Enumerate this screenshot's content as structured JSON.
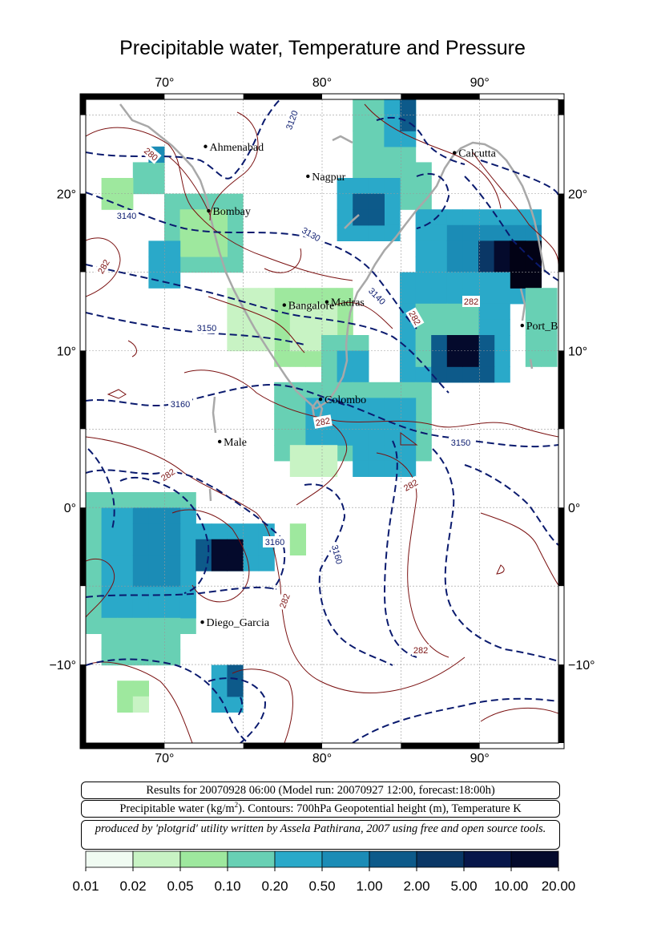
{
  "title": "Precipitable water, Temperature and Pressure",
  "map": {
    "lon_ticks": [
      "70°",
      "80°",
      "90°"
    ],
    "lat_ticks": [
      "20°",
      "10°",
      "0°",
      "−10°"
    ],
    "cities": [
      {
        "name": "Ahmenabad",
        "lon": 72.6,
        "lat": 23.0
      },
      {
        "name": "Nagpur",
        "lon": 79.1,
        "lat": 21.1
      },
      {
        "name": "Calcutta",
        "lon": 88.4,
        "lat": 22.6
      },
      {
        "name": "Bombay",
        "lon": 72.8,
        "lat": 18.9
      },
      {
        "name": "Bangalore",
        "lon": 77.6,
        "lat": 12.9
      },
      {
        "name": "Madras",
        "lon": 80.3,
        "lat": 13.1
      },
      {
        "name": "Port_B",
        "lon": 92.7,
        "lat": 11.6
      },
      {
        "name": "Colombo",
        "lon": 79.9,
        "lat": 6.9
      },
      {
        "name": "Male",
        "lon": 73.5,
        "lat": 4.2
      },
      {
        "name": "Diego_Garcia",
        "lon": 72.4,
        "lat": -7.3
      }
    ],
    "height_contour_labels": [
      "3120",
      "3130",
      "3140",
      "3140",
      "3150",
      "3150",
      "3160",
      "3160",
      "3160"
    ],
    "temperature_contour_labels": [
      "280",
      "282",
      "282",
      "282",
      "282",
      "282",
      "282",
      "282",
      "282"
    ]
  },
  "info": {
    "line1": "Results for 20070928 06:00 (Model run: 20070927 12:00, forecast:18:00h)",
    "line2_a": "Precipitable water (kg/m",
    "line2_sup": "2",
    "line2_b": ").  Contours: 700hPa Geopotential height (m), Temperature K",
    "credit": "produced by 'plotgrid' utility written by Assela Pathirana, 2007 using free and open source tools."
  },
  "legend": {
    "labels": [
      "0.01",
      "0.02",
      "0.05",
      "0.10",
      "0.20",
      "0.50",
      "1.00",
      "2.00",
      "5.00",
      "10.00",
      "20.00"
    ],
    "colors": [
      "#f0fbf2",
      "#c8f3c4",
      "#9ee89e",
      "#68d0b4",
      "#2aa9c9",
      "#1b8cb6",
      "#0d5a8a",
      "#0a3766",
      "#07164a",
      "#040a2c",
      "#020215"
    ]
  }
}
